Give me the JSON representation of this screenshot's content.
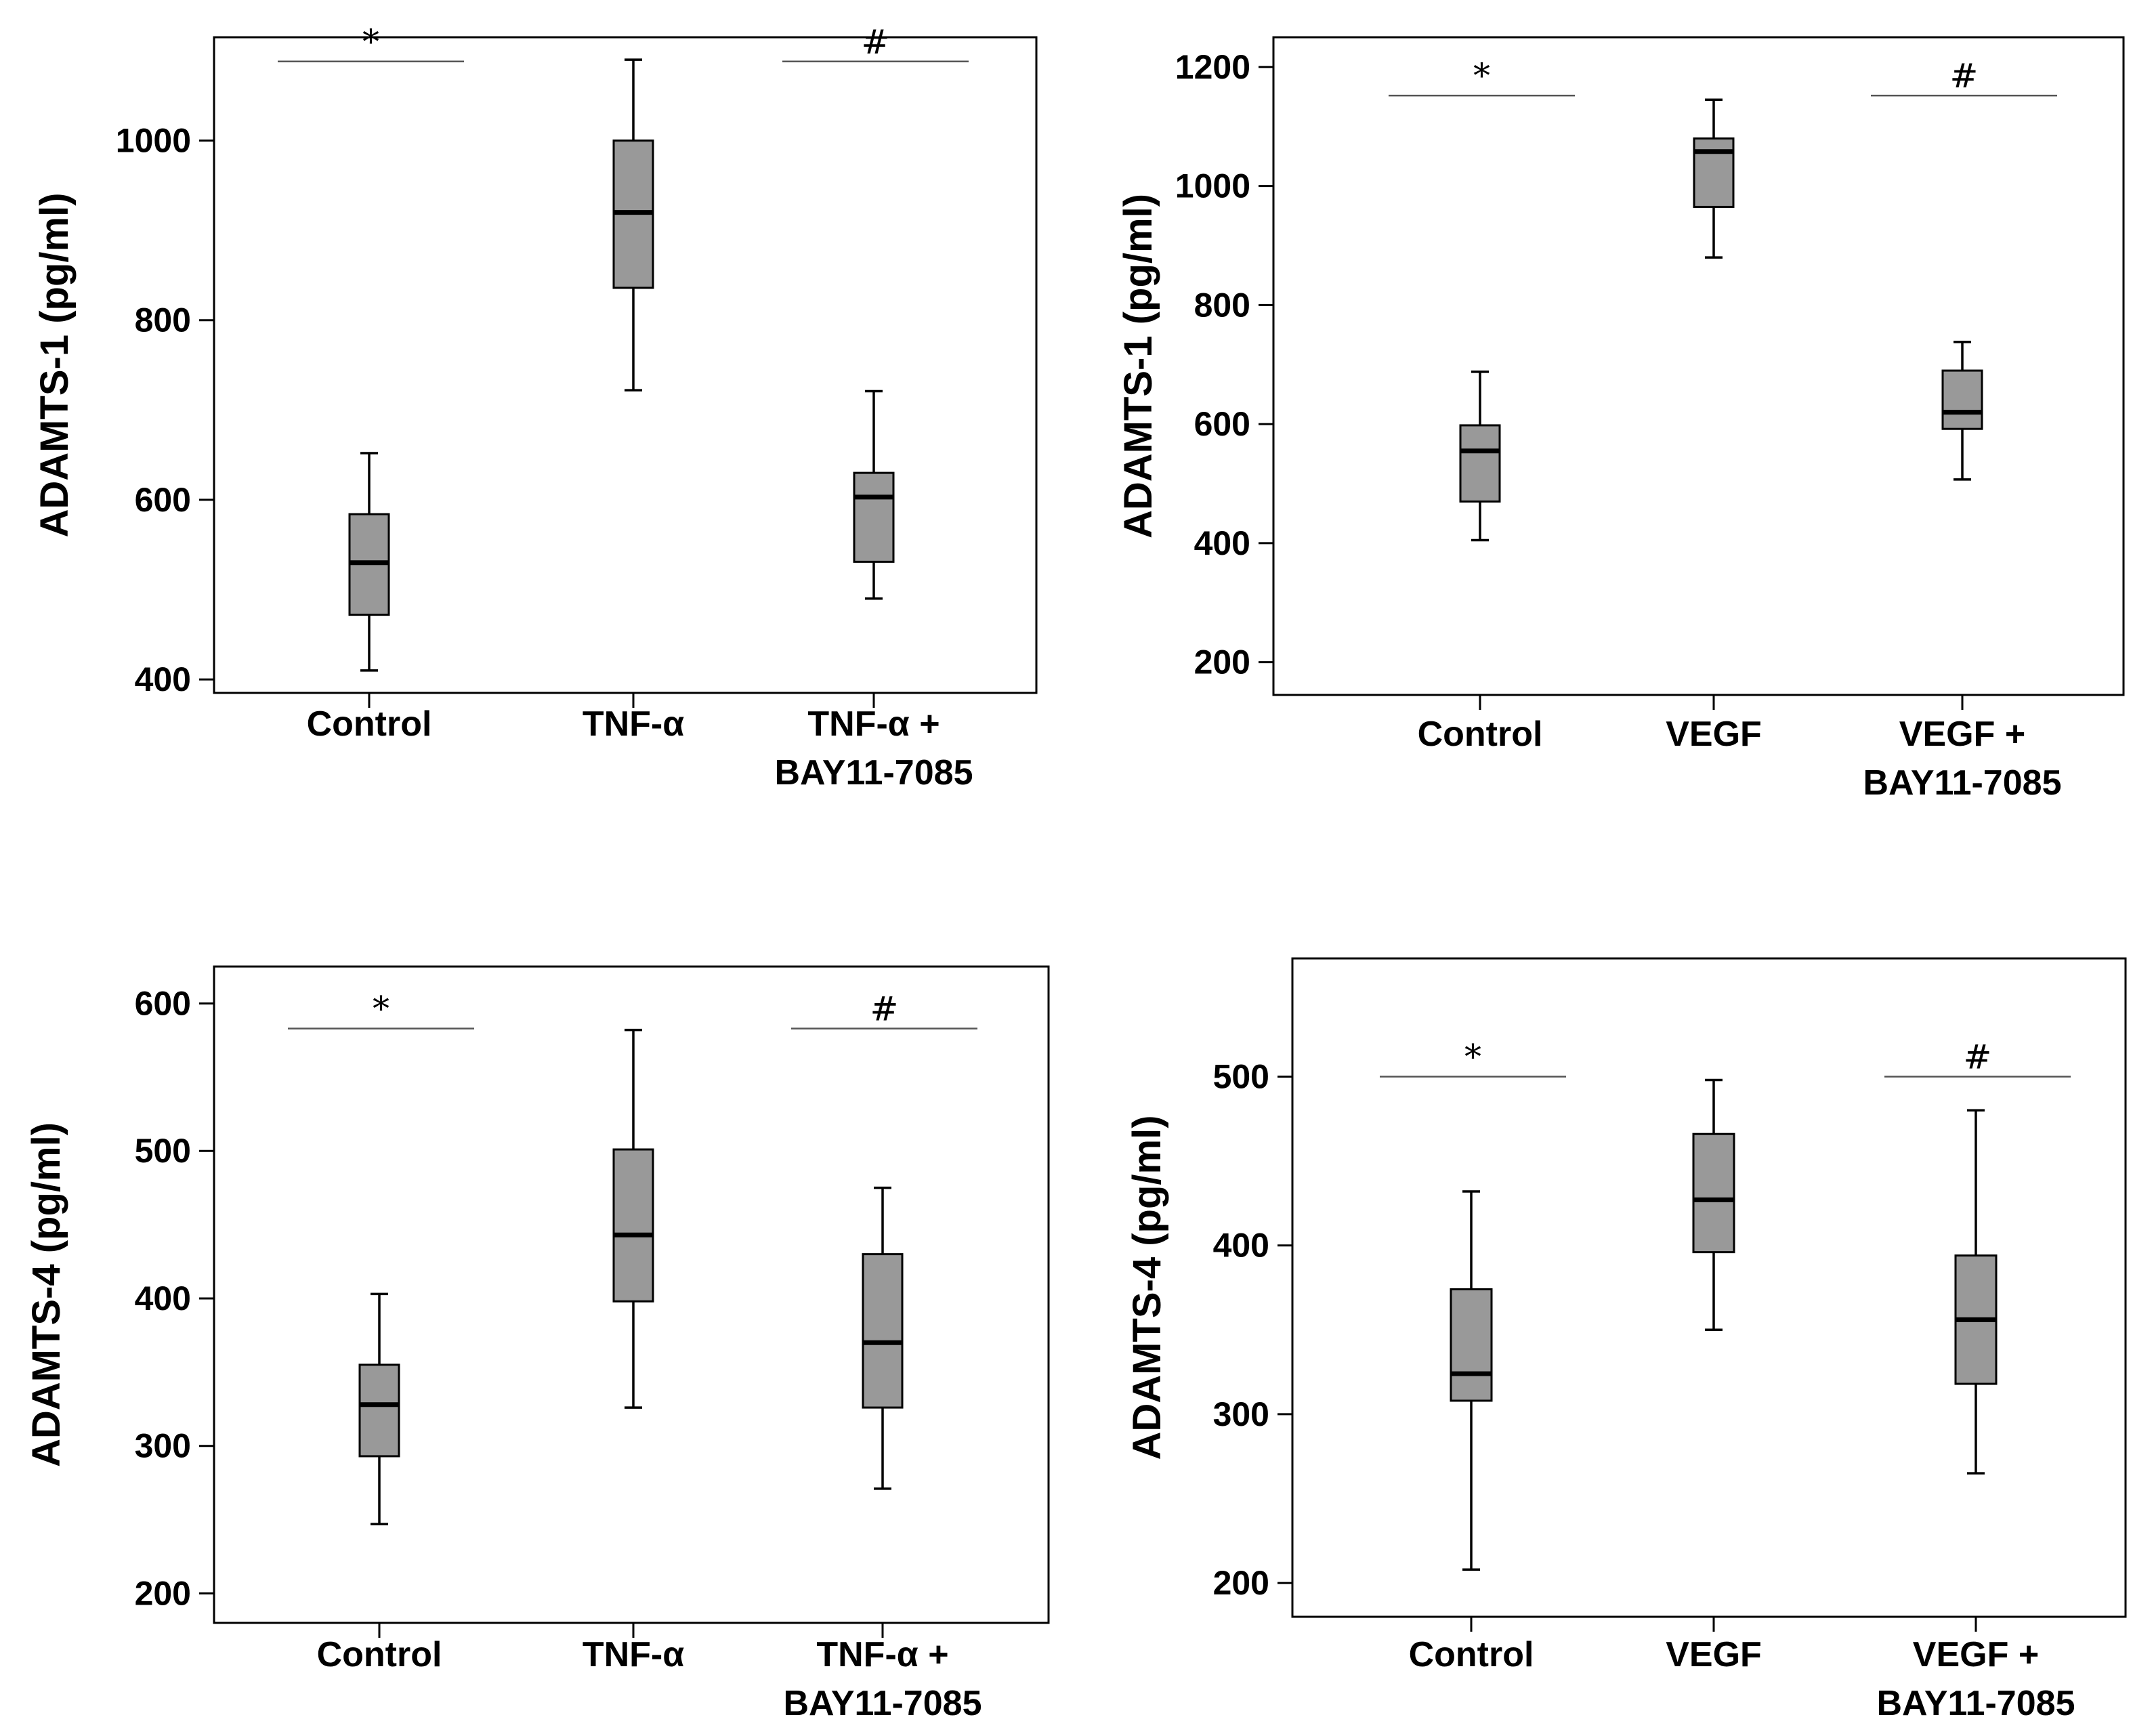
{
  "colors": {
    "box_fill": "#999999",
    "stroke": "#000000",
    "bracket": "#555555"
  },
  "chart_data": [
    {
      "type": "box",
      "ylabel": "ADAMTS-1 (pg/ml)",
      "ylim": [
        385,
        1115
      ],
      "yticks": [
        400,
        600,
        800,
        1000
      ],
      "categories": [
        [
          "Control"
        ],
        [
          "TNF-α"
        ],
        [
          "TNF-α +",
          "BAY11-7085"
        ]
      ],
      "boxes": [
        {
          "min": 410,
          "q1": 472,
          "median": 530,
          "q3": 584,
          "max": 652
        },
        {
          "min": 722,
          "q1": 836,
          "median": 920,
          "q3": 1000,
          "max": 1090
        },
        {
          "min": 490,
          "q1": 531,
          "median": 603,
          "q3": 630,
          "max": 721
        }
      ],
      "annotations": [
        {
          "symbol": "*",
          "from": 0,
          "to": 0.95,
          "y": 1088
        },
        {
          "symbol": "#",
          "from": 2.05,
          "to": 3,
          "y": 1088
        }
      ]
    },
    {
      "type": "box",
      "ylabel": "ADAMTS-1 (pg/ml)",
      "ylim": [
        145,
        1250
      ],
      "yticks": [
        200,
        400,
        600,
        800,
        1000,
        1200
      ],
      "categories": [
        [
          "Control"
        ],
        [
          "VEGF"
        ],
        [
          "VEGF +",
          "BAY11-7085"
        ]
      ],
      "boxes": [
        {
          "min": 405,
          "q1": 470,
          "median": 555,
          "q3": 598,
          "max": 688
        },
        {
          "min": 880,
          "q1": 965,
          "median": 1058,
          "q3": 1080,
          "max": 1145
        },
        {
          "min": 507,
          "q1": 592,
          "median": 620,
          "q3": 690,
          "max": 738
        }
      ],
      "annotations": [
        {
          "symbol": "*",
          "from": 0,
          "to": 0.95,
          "y": 1152
        },
        {
          "symbol": "#",
          "from": 2.05,
          "to": 3,
          "y": 1152
        }
      ]
    },
    {
      "type": "box",
      "ylabel": "ADAMTS-4 (pg/ml)",
      "ylim": [
        180,
        625
      ],
      "yticks": [
        200,
        300,
        400,
        500,
        600
      ],
      "categories": [
        [
          "Control"
        ],
        [
          "TNF-α"
        ],
        [
          "TNF-α +",
          "BAY11-7085"
        ]
      ],
      "boxes": [
        {
          "min": 247,
          "q1": 293,
          "median": 328,
          "q3": 355,
          "max": 403
        },
        {
          "min": 326,
          "q1": 398,
          "median": 443,
          "q3": 501,
          "max": 582
        },
        {
          "min": 271,
          "q1": 326,
          "median": 370,
          "q3": 430,
          "max": 475
        }
      ],
      "annotations": [
        {
          "symbol": "*",
          "from": 0,
          "to": 0.95,
          "y": 583
        },
        {
          "symbol": "#",
          "from": 2.05,
          "to": 3,
          "y": 583
        }
      ]
    },
    {
      "type": "box",
      "ylabel": "ADAMTS-4 (pg/ml)",
      "ylim": [
        180,
        570
      ],
      "yticks": [
        200,
        300,
        400,
        500
      ],
      "categories": [
        [
          "Control"
        ],
        [
          "VEGF"
        ],
        [
          "VEGF +",
          "BAY11-7085"
        ]
      ],
      "boxes": [
        {
          "min": 208,
          "q1": 308,
          "median": 324,
          "q3": 374,
          "max": 432
        },
        {
          "min": 350,
          "q1": 396,
          "median": 427,
          "q3": 466,
          "max": 498
        },
        {
          "min": 265,
          "q1": 318,
          "median": 356,
          "q3": 394,
          "max": 480
        }
      ],
      "annotations": [
        {
          "symbol": "*",
          "from": 0,
          "to": 0.95,
          "y": 500
        },
        {
          "symbol": "#",
          "from": 2.05,
          "to": 3,
          "y": 500
        }
      ]
    }
  ]
}
